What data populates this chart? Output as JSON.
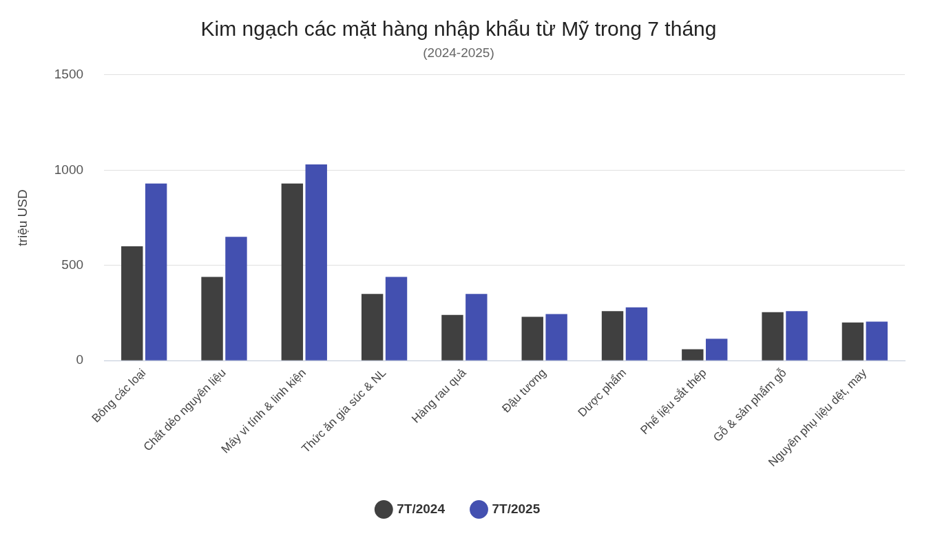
{
  "chart_data": {
    "type": "bar",
    "title": "Kim ngạch các mặt hàng nhập khẩu từ Mỹ trong 7 tháng",
    "subtitle": "(2024-2025)",
    "ylabel": "triệu USD",
    "categories": [
      "Bông các loại",
      "Chất dẻo nguyên liệu",
      "Máy vi tính & linh kiện",
      "Thức ăn gia súc & NL",
      "Hàng rau quả",
      "Đậu tương",
      "Dược phẩm",
      "Phế liệu sắt thép",
      "Gỗ & sản phẩm gỗ",
      "Nguyên phụ liệu dệt, may"
    ],
    "series": [
      {
        "name": "7T/2024",
        "color": "#404040",
        "values": [
          600,
          440,
          930,
          350,
          240,
          230,
          260,
          60,
          255,
          200
        ]
      },
      {
        "name": "7T/2025",
        "color": "#4350b0",
        "values": [
          930,
          650,
          1030,
          440,
          350,
          245,
          280,
          115,
          260,
          205
        ]
      }
    ],
    "ylim": [
      0,
      1500
    ],
    "yticks": [
      0,
      500,
      1000,
      1500
    ],
    "grid": "y",
    "legend": "bottom",
    "marker": "circle"
  }
}
